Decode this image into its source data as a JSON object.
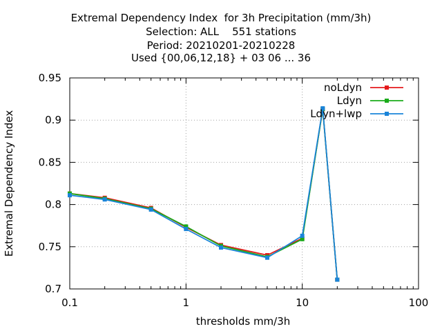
{
  "chart_data": {
    "type": "line",
    "title_lines": [
      "Extremal Dependency Index  for 3h Precipitation (mm/3h)",
      "Selection: ALL    551 stations",
      "Period: 20210201-20210228",
      "Used {00,06,12,18} + 03 06 ... 36"
    ],
    "xlabel": "thresholds mm/3h",
    "ylabel": "Extremal Dependency Index",
    "x_scale": "log",
    "xlim": [
      0.1,
      100
    ],
    "ylim": [
      0.7,
      0.95
    ],
    "x_ticks": [
      {
        "value": 0.1,
        "label": "0.1"
      },
      {
        "value": 1,
        "label": "1"
      },
      {
        "value": 10,
        "label": "10"
      },
      {
        "value": 100,
        "label": "100"
      }
    ],
    "y_ticks": [
      {
        "value": 0.7,
        "label": "0.7"
      },
      {
        "value": 0.75,
        "label": "0.75"
      },
      {
        "value": 0.8,
        "label": "0.8"
      },
      {
        "value": 0.85,
        "label": "0.85"
      },
      {
        "value": 0.9,
        "label": "0.9"
      },
      {
        "value": 0.95,
        "label": "0.95"
      }
    ],
    "grid": true,
    "legend_position": "top-right",
    "series": [
      {
        "name": "noLdyn",
        "color": "#e41a1c",
        "x": [
          0.1,
          0.2,
          0.5,
          1,
          2,
          5,
          10,
          15,
          20
        ],
        "y": [
          0.813,
          0.808,
          0.796,
          0.773,
          0.752,
          0.74,
          0.76,
          0.913,
          0.711
        ]
      },
      {
        "name": "Ldyn",
        "color": "#1aab1a",
        "x": [
          0.1,
          0.2,
          0.5,
          1,
          2,
          5,
          10,
          15,
          20
        ],
        "y": [
          0.813,
          0.807,
          0.795,
          0.774,
          0.751,
          0.738,
          0.759,
          0.913,
          0.711
        ]
      },
      {
        "name": "Ldyn+lwp",
        "color": "#1a84d9",
        "x": [
          0.1,
          0.2,
          0.5,
          1,
          2,
          5,
          10,
          15,
          20
        ],
        "y": [
          0.811,
          0.806,
          0.794,
          0.771,
          0.749,
          0.737,
          0.763,
          0.914,
          0.711
        ]
      }
    ]
  }
}
